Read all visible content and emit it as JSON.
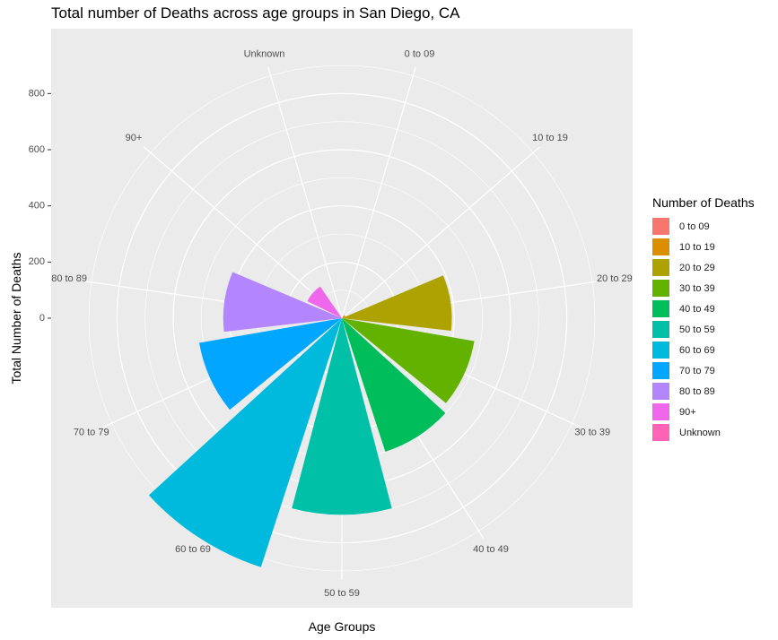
{
  "chart_data": {
    "type": "bar",
    "coordinate_system": "polar",
    "title": "Total number of Deaths across age groups in San Diego, CA",
    "xlabel": "Age Groups",
    "ylabel": "Total Number of Deaths",
    "categories": [
      "0 to 09",
      "10 to 19",
      "20 to 29",
      "30 to 39",
      "40 to 49",
      "50 to 59",
      "60 to 69",
      "70 to 79",
      "80 to 89",
      "90+",
      "Unknown"
    ],
    "values": [
      1,
      14,
      391,
      478,
      500,
      700,
      932,
      515,
      422,
      137,
      0
    ],
    "colors": [
      "#F8766D",
      "#DB8E00",
      "#AEA200",
      "#64B200",
      "#00BD5C",
      "#00C1A7",
      "#00BADE",
      "#00A6FF",
      "#B385FF",
      "#EF67EB",
      "#FF63B6"
    ],
    "yticks": [
      0,
      200,
      400,
      600,
      800
    ],
    "ylim": [
      0,
      932
    ],
    "grid": true,
    "legend": {
      "title": "Number of Deaths",
      "position": "right"
    }
  }
}
